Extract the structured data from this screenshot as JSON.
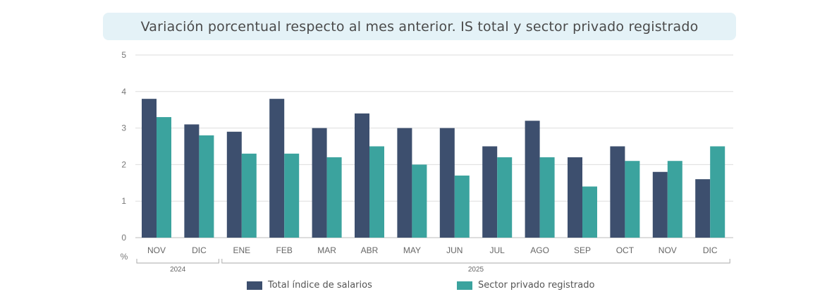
{
  "title": "Variación porcentual respecto al mes anterior. IS total y sector privado registrado",
  "chart_data": {
    "type": "bar",
    "categories": [
      "NOV",
      "DIC",
      "ENE",
      "FEB",
      "MAR",
      "ABR",
      "MAY",
      "JUN",
      "JUL",
      "AGO",
      "SEP",
      "OCT",
      "NOV",
      "DIC"
    ],
    "year_groups": [
      {
        "label": "2024",
        "start": 0,
        "end": 1
      },
      {
        "label": "2025",
        "start": 2,
        "end": 13
      }
    ],
    "series": [
      {
        "name": "Total índice de salarios",
        "color": "#3d4f6e",
        "values": [
          3.8,
          3.1,
          2.9,
          3.8,
          3.0,
          3.4,
          3.0,
          3.0,
          2.5,
          3.2,
          2.2,
          2.5,
          1.8,
          1.6
        ]
      },
      {
        "name": "Sector privado registrado",
        "color": "#3ba39e",
        "values": [
          3.3,
          2.8,
          2.3,
          2.3,
          2.2,
          2.5,
          2.0,
          1.7,
          2.2,
          2.2,
          1.4,
          2.1,
          2.1,
          2.5
        ]
      }
    ],
    "yticks": [
      "0",
      "1",
      "2",
      "3",
      "4",
      "5"
    ],
    "ylim": [
      0,
      5
    ],
    "ylabel": "%",
    "grid": true,
    "legend_position": "bottom"
  }
}
